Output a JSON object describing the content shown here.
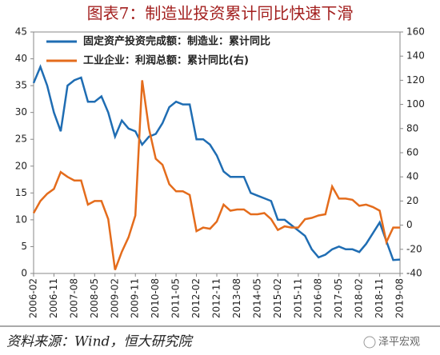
{
  "chart_data": {
    "type": "line",
    "title": "图表7：制造业投资累计同比快速下滑",
    "source": "资料来源：Wind，恒大研究院",
    "watermark": "泽平宏观",
    "x": [
      "2006-02",
      "2006-05",
      "2006-08",
      "2006-11",
      "2007-02",
      "2007-05",
      "2007-08",
      "2007-11",
      "2008-02",
      "2008-05",
      "2008-08",
      "2008-11",
      "2009-02",
      "2009-05",
      "2009-08",
      "2009-11",
      "2010-02",
      "2010-05",
      "2010-08",
      "2010-11",
      "2011-02",
      "2011-05",
      "2011-08",
      "2011-11",
      "2012-02",
      "2012-05",
      "2012-08",
      "2012-11",
      "2013-02",
      "2013-05",
      "2013-08",
      "2013-11",
      "2014-02",
      "2014-05",
      "2014-08",
      "2014-11",
      "2015-02",
      "2015-05",
      "2015-08",
      "2015-11",
      "2016-02",
      "2016-05",
      "2016-08",
      "2016-11",
      "2017-02",
      "2017-05",
      "2017-08",
      "2017-11",
      "2018-02",
      "2018-05",
      "2018-08",
      "2018-11",
      "2019-02",
      "2019-05",
      "2019-08"
    ],
    "xticks": [
      "2006-02",
      "2006-11",
      "2007-08",
      "2008-05",
      "2009-02",
      "2009-11",
      "2010-08",
      "2011-05",
      "2012-02",
      "2012-11",
      "2013-08",
      "2014-05",
      "2015-02",
      "2015-11",
      "2016-08",
      "2017-05",
      "2018-02",
      "2018-11",
      "2019-08"
    ],
    "ylim": [
      0,
      45
    ],
    "yticks": [
      0,
      5,
      10,
      15,
      20,
      25,
      30,
      35,
      40,
      45
    ],
    "y2lim": [
      -40,
      160
    ],
    "y2ticks": [
      -40,
      -20,
      0,
      20,
      40,
      60,
      80,
      100,
      120,
      140,
      160
    ],
    "legend": "upper left",
    "series": [
      {
        "name": "固定资产投资完成额：制造业：累计同比",
        "color": "#1f6db3",
        "values": [
          35.5,
          38.5,
          35,
          30,
          26.5,
          35,
          36,
          36.5,
          32,
          32,
          33,
          30,
          25.5,
          28.5,
          27,
          26.5,
          24,
          25.5,
          26,
          28,
          31,
          32,
          31.5,
          31.5,
          25,
          25,
          24,
          22,
          19,
          18,
          18,
          18,
          15,
          14.5,
          14,
          13.5,
          10,
          10,
          9,
          8,
          7,
          4.5,
          3,
          3.5,
          4.5,
          5,
          4.5,
          4.5,
          4,
          5.5,
          7.5,
          9.5,
          6,
          2.5,
          2.6
        ]
      },
      {
        "name": "工业企业：利润总额：累计同比(右)",
        "color": "#e46c1c",
        "axis": "y2",
        "values": [
          10,
          20,
          26,
          30,
          44,
          40,
          37,
          37,
          17,
          20,
          20,
          5,
          -37,
          -22,
          -10,
          8,
          120,
          80,
          55,
          50,
          34,
          28,
          28,
          25,
          -5,
          -2,
          -3,
          3,
          17,
          12,
          13,
          13,
          9,
          9,
          10,
          5,
          -4,
          -1,
          -2,
          -2,
          5,
          6,
          8,
          9,
          32,
          22,
          22,
          21,
          16,
          17,
          15,
          12,
          -14,
          -2,
          -2
        ]
      }
    ]
  }
}
